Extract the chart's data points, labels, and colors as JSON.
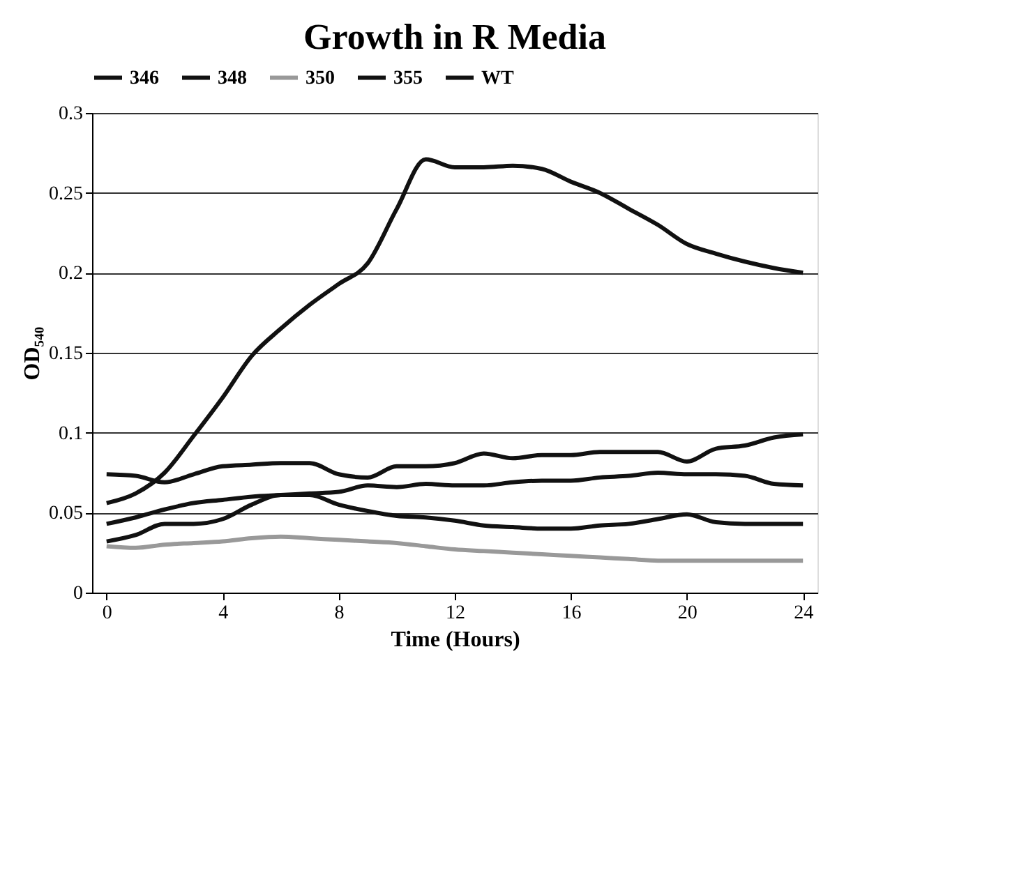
{
  "chart_data": {
    "type": "line",
    "title": "Growth in R Media",
    "xlabel": "Time (Hours)",
    "ylabel": "OD₅₄₀",
    "x": [
      0,
      1,
      2,
      3,
      4,
      5,
      6,
      7,
      8,
      9,
      10,
      11,
      12,
      13,
      14,
      15,
      16,
      17,
      18,
      19,
      20,
      21,
      22,
      23,
      24
    ],
    "xlim": [
      -0.5,
      24.5
    ],
    "xticks": [
      0,
      4,
      8,
      12,
      16,
      20,
      24
    ],
    "ylim": [
      0,
      0.3
    ],
    "yticks": [
      0,
      0.05,
      0.1,
      0.15,
      0.2,
      0.25,
      0.3
    ],
    "grid": "y",
    "legend": "top",
    "marker": "none",
    "line_style": "solid",
    "series": [
      {
        "name": "346",
        "color": "#111111",
        "values": [
          0.056,
          0.062,
          0.075,
          0.098,
          0.122,
          0.148,
          0.165,
          0.18,
          0.193,
          0.206,
          0.24,
          0.271,
          0.266,
          0.266,
          0.267,
          0.265,
          0.257,
          0.25,
          0.24,
          0.23,
          0.218,
          0.212,
          0.207,
          0.203,
          0.2
        ]
      },
      {
        "name": "348",
        "color": "#111111",
        "values": [
          0.074,
          0.073,
          0.069,
          0.074,
          0.079,
          0.08,
          0.081,
          0.081,
          0.074,
          0.072,
          0.079,
          0.079,
          0.081,
          0.087,
          0.084,
          0.086,
          0.086,
          0.088,
          0.088,
          0.088,
          0.082,
          0.09,
          0.092,
          0.097,
          0.099
        ]
      },
      {
        "name": "350",
        "color": "#999999",
        "values": [
          0.029,
          0.028,
          0.03,
          0.031,
          0.032,
          0.034,
          0.035,
          0.034,
          0.033,
          0.032,
          0.031,
          0.029,
          0.027,
          0.026,
          0.025,
          0.024,
          0.023,
          0.022,
          0.021,
          0.02,
          0.02,
          0.02,
          0.02,
          0.02,
          0.02
        ]
      },
      {
        "name": "355",
        "color": "#111111",
        "values": [
          0.043,
          0.047,
          0.052,
          0.056,
          0.058,
          0.06,
          0.061,
          0.062,
          0.063,
          0.067,
          0.066,
          0.068,
          0.067,
          0.067,
          0.069,
          0.07,
          0.07,
          0.072,
          0.073,
          0.075,
          0.074,
          0.074,
          0.073,
          0.068,
          0.067
        ]
      },
      {
        "name": "WT",
        "color": "#111111",
        "values": [
          0.032,
          0.036,
          0.043,
          0.043,
          0.046,
          0.055,
          0.061,
          0.061,
          0.055,
          0.051,
          0.048,
          0.047,
          0.045,
          0.042,
          0.041,
          0.04,
          0.04,
          0.042,
          0.043,
          0.046,
          0.049,
          0.044,
          0.043,
          0.043,
          0.043
        ]
      }
    ]
  }
}
